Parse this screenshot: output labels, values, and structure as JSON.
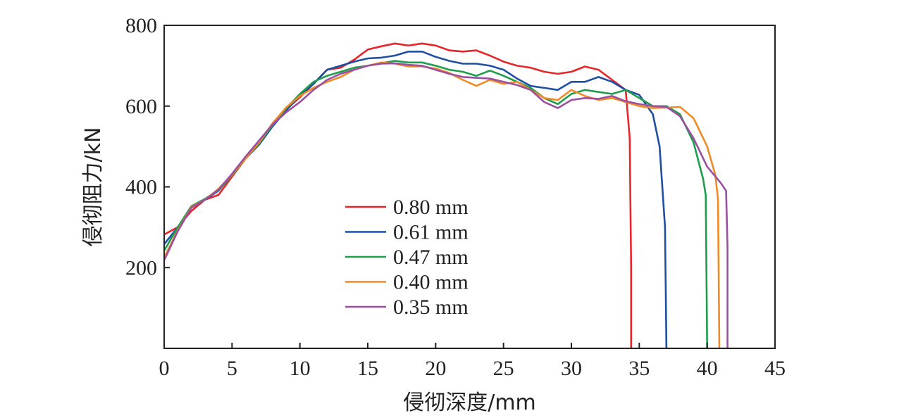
{
  "chart_data": {
    "type": "line",
    "xlabel": "侵彻深度/mm",
    "ylabel": "侵彻阻力/kN",
    "xlim": [
      0,
      45
    ],
    "ylim": [
      0,
      800
    ],
    "xticks": [
      0,
      5,
      10,
      15,
      20,
      25,
      30,
      35,
      40,
      45
    ],
    "yticks": [
      200,
      400,
      600,
      800
    ],
    "grid": false,
    "legend_position": "center-left",
    "series": [
      {
        "name": "0.80 mm",
        "color": "#e8262a",
        "points": [
          [
            0,
            282
          ],
          [
            1,
            300
          ],
          [
            2,
            340
          ],
          [
            3,
            368
          ],
          [
            4,
            380
          ],
          [
            5,
            425
          ],
          [
            6,
            470
          ],
          [
            7,
            510
          ],
          [
            8,
            555
          ],
          [
            9,
            592
          ],
          [
            10,
            622
          ],
          [
            11,
            655
          ],
          [
            12,
            690
          ],
          [
            13,
            695
          ],
          [
            14,
            715
          ],
          [
            15,
            740
          ],
          [
            16,
            748
          ],
          [
            17,
            755
          ],
          [
            18,
            750
          ],
          [
            19,
            755
          ],
          [
            20,
            750
          ],
          [
            21,
            738
          ],
          [
            22,
            735
          ],
          [
            23,
            738
          ],
          [
            24,
            725
          ],
          [
            25,
            710
          ],
          [
            26,
            700
          ],
          [
            27,
            695
          ],
          [
            28,
            685
          ],
          [
            29,
            680
          ],
          [
            30,
            685
          ],
          [
            31,
            698
          ],
          [
            32,
            690
          ],
          [
            33,
            665
          ],
          [
            34,
            640
          ],
          [
            34.3,
            520
          ],
          [
            34.4,
            200
          ],
          [
            34.4,
            0
          ]
        ]
      },
      {
        "name": "0.61 mm",
        "color": "#1f4fa3",
        "points": [
          [
            0,
            258
          ],
          [
            1,
            300
          ],
          [
            2,
            348
          ],
          [
            3,
            368
          ],
          [
            4,
            390
          ],
          [
            5,
            430
          ],
          [
            6,
            470
          ],
          [
            7,
            505
          ],
          [
            8,
            550
          ],
          [
            9,
            590
          ],
          [
            10,
            625
          ],
          [
            11,
            655
          ],
          [
            12,
            690
          ],
          [
            13,
            700
          ],
          [
            14,
            710
          ],
          [
            15,
            718
          ],
          [
            16,
            720
          ],
          [
            17,
            725
          ],
          [
            18,
            735
          ],
          [
            19,
            735
          ],
          [
            20,
            722
          ],
          [
            21,
            712
          ],
          [
            22,
            705
          ],
          [
            23,
            705
          ],
          [
            24,
            700
          ],
          [
            25,
            690
          ],
          [
            26,
            668
          ],
          [
            27,
            650
          ],
          [
            28,
            645
          ],
          [
            29,
            640
          ],
          [
            30,
            660
          ],
          [
            31,
            660
          ],
          [
            32,
            672
          ],
          [
            33,
            660
          ],
          [
            34,
            640
          ],
          [
            35,
            628
          ],
          [
            36,
            580
          ],
          [
            36.5,
            500
          ],
          [
            36.9,
            300
          ],
          [
            37,
            0
          ]
        ]
      },
      {
        "name": "0.47 mm",
        "color": "#1e9d4c",
        "points": [
          [
            0,
            242
          ],
          [
            1,
            300
          ],
          [
            2,
            352
          ],
          [
            3,
            370
          ],
          [
            4,
            392
          ],
          [
            5,
            428
          ],
          [
            6,
            470
          ],
          [
            7,
            508
          ],
          [
            8,
            553
          ],
          [
            9,
            595
          ],
          [
            10,
            630
          ],
          [
            11,
            660
          ],
          [
            12,
            675
          ],
          [
            13,
            685
          ],
          [
            14,
            695
          ],
          [
            15,
            700
          ],
          [
            16,
            706
          ],
          [
            17,
            712
          ],
          [
            18,
            708
          ],
          [
            19,
            708
          ],
          [
            20,
            700
          ],
          [
            21,
            690
          ],
          [
            22,
            685
          ],
          [
            23,
            675
          ],
          [
            24,
            688
          ],
          [
            25,
            675
          ],
          [
            26,
            660
          ],
          [
            27,
            645
          ],
          [
            28,
            620
          ],
          [
            29,
            605
          ],
          [
            30,
            630
          ],
          [
            31,
            640
          ],
          [
            32,
            635
          ],
          [
            33,
            630
          ],
          [
            34,
            640
          ],
          [
            35,
            620
          ],
          [
            36,
            600
          ],
          [
            37,
            600
          ],
          [
            38,
            580
          ],
          [
            39,
            510
          ],
          [
            39.7,
            420
          ],
          [
            39.9,
            380
          ],
          [
            40,
            0
          ]
        ]
      },
      {
        "name": "0.40 mm",
        "color": "#f08a24",
        "points": [
          [
            0,
            225
          ],
          [
            1,
            292
          ],
          [
            2,
            350
          ],
          [
            3,
            368
          ],
          [
            4,
            395
          ],
          [
            5,
            430
          ],
          [
            6,
            470
          ],
          [
            7,
            510
          ],
          [
            8,
            558
          ],
          [
            9,
            597
          ],
          [
            10,
            625
          ],
          [
            11,
            645
          ],
          [
            12,
            660
          ],
          [
            13,
            672
          ],
          [
            14,
            690
          ],
          [
            15,
            700
          ],
          [
            16,
            708
          ],
          [
            17,
            705
          ],
          [
            18,
            698
          ],
          [
            19,
            698
          ],
          [
            20,
            693
          ],
          [
            21,
            682
          ],
          [
            22,
            665
          ],
          [
            23,
            650
          ],
          [
            24,
            665
          ],
          [
            25,
            655
          ],
          [
            26,
            660
          ],
          [
            27,
            640
          ],
          [
            28,
            620
          ],
          [
            29,
            615
          ],
          [
            30,
            640
          ],
          [
            31,
            625
          ],
          [
            32,
            615
          ],
          [
            33,
            620
          ],
          [
            34,
            610
          ],
          [
            35,
            600
          ],
          [
            36,
            595
          ],
          [
            37,
            596
          ],
          [
            38,
            598
          ],
          [
            39,
            570
          ],
          [
            40,
            500
          ],
          [
            40.6,
            430
          ],
          [
            40.8,
            370
          ],
          [
            40.9,
            0
          ]
        ]
      },
      {
        "name": "0.35 mm",
        "color": "#9b4fa0",
        "points": [
          [
            0,
            218
          ],
          [
            1,
            290
          ],
          [
            2,
            348
          ],
          [
            3,
            368
          ],
          [
            4,
            393
          ],
          [
            5,
            432
          ],
          [
            6,
            475
          ],
          [
            7,
            515
          ],
          [
            8,
            555
          ],
          [
            9,
            585
          ],
          [
            10,
            610
          ],
          [
            11,
            640
          ],
          [
            12,
            665
          ],
          [
            13,
            680
          ],
          [
            14,
            690
          ],
          [
            15,
            700
          ],
          [
            16,
            705
          ],
          [
            17,
            706
          ],
          [
            18,
            702
          ],
          [
            19,
            700
          ],
          [
            20,
            690
          ],
          [
            21,
            680
          ],
          [
            22,
            672
          ],
          [
            23,
            670
          ],
          [
            24,
            668
          ],
          [
            25,
            660
          ],
          [
            26,
            652
          ],
          [
            27,
            640
          ],
          [
            28,
            610
          ],
          [
            29,
            595
          ],
          [
            30,
            615
          ],
          [
            31,
            620
          ],
          [
            32,
            618
          ],
          [
            33,
            625
          ],
          [
            34,
            612
          ],
          [
            35,
            605
          ],
          [
            36,
            600
          ],
          [
            37,
            598
          ],
          [
            38,
            575
          ],
          [
            39,
            520
          ],
          [
            40,
            450
          ],
          [
            41,
            410
          ],
          [
            41.4,
            390
          ],
          [
            41.5,
            250
          ],
          [
            41.5,
            0
          ]
        ]
      }
    ]
  }
}
